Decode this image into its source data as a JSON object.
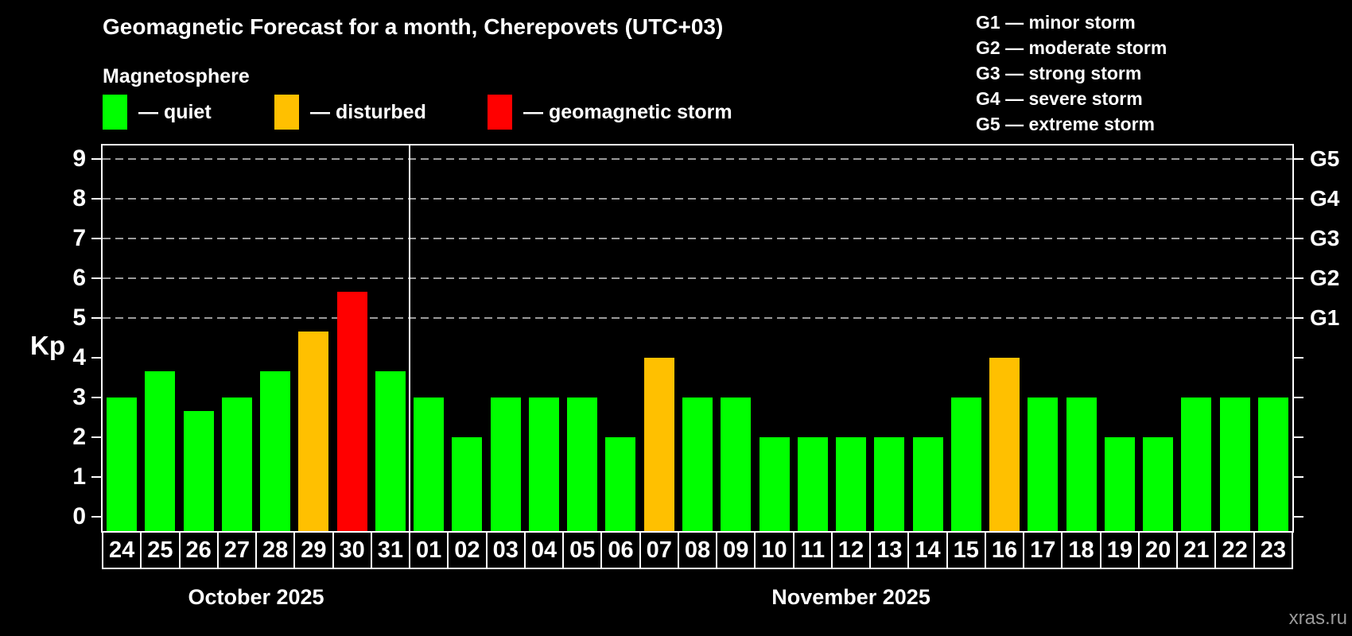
{
  "header": {
    "title": "Geomagnetic Forecast for a month, Cherepovets (UTC+03)",
    "subtitle": "Magnetosphere"
  },
  "legend": {
    "items": [
      {
        "key": "quiet",
        "label": "— quiet"
      },
      {
        "key": "disturbed",
        "label": "— disturbed"
      },
      {
        "key": "storm",
        "label": "— geomagnetic storm"
      }
    ]
  },
  "g_legend": {
    "items": [
      "G1 — minor storm",
      "G2 — moderate storm",
      "G3 — strong storm",
      "G4 — severe storm",
      "G5 — extreme storm"
    ]
  },
  "axes": {
    "y_label": "Kp",
    "y_ticks": [
      0,
      1,
      2,
      3,
      4,
      5,
      6,
      7,
      8,
      9
    ],
    "grid_levels": [
      5,
      6,
      7,
      8,
      9
    ],
    "right_labels": [
      {
        "kp": 5,
        "label": "G1"
      },
      {
        "kp": 6,
        "label": "G2"
      },
      {
        "kp": 7,
        "label": "G3"
      },
      {
        "kp": 8,
        "label": "G4"
      },
      {
        "kp": 9,
        "label": "G5"
      }
    ]
  },
  "colors": {
    "quiet": "#00ff00",
    "disturbed": "#ffc000",
    "storm": "#ff0000",
    "grid": "#9a9a9a",
    "axis": "#ffffff",
    "watermark": "#999999"
  },
  "chart_data": {
    "type": "bar",
    "title": "Geomagnetic Forecast for a month, Cherepovets (UTC+03)",
    "xlabel": "",
    "ylabel": "Kp",
    "ylim": [
      0,
      9
    ],
    "grid": "dashed horizontal at Kp 5-9 (G1-G5)",
    "months": [
      {
        "label": "October 2025",
        "days": [
          {
            "day": "24",
            "kp": 3.0,
            "level": "quiet"
          },
          {
            "day": "25",
            "kp": 3.67,
            "level": "quiet"
          },
          {
            "day": "26",
            "kp": 2.67,
            "level": "quiet"
          },
          {
            "day": "27",
            "kp": 3.0,
            "level": "quiet"
          },
          {
            "day": "28",
            "kp": 3.67,
            "level": "quiet"
          },
          {
            "day": "29",
            "kp": 4.67,
            "level": "disturbed"
          },
          {
            "day": "30",
            "kp": 5.67,
            "level": "storm"
          },
          {
            "day": "31",
            "kp": 3.67,
            "level": "quiet"
          }
        ]
      },
      {
        "label": "November 2025",
        "days": [
          {
            "day": "01",
            "kp": 3,
            "level": "quiet"
          },
          {
            "day": "02",
            "kp": 2,
            "level": "quiet"
          },
          {
            "day": "03",
            "kp": 3,
            "level": "quiet"
          },
          {
            "day": "04",
            "kp": 3,
            "level": "quiet"
          },
          {
            "day": "05",
            "kp": 3,
            "level": "quiet"
          },
          {
            "day": "06",
            "kp": 2,
            "level": "quiet"
          },
          {
            "day": "07",
            "kp": 4,
            "level": "disturbed"
          },
          {
            "day": "08",
            "kp": 3,
            "level": "quiet"
          },
          {
            "day": "09",
            "kp": 3,
            "level": "quiet"
          },
          {
            "day": "10",
            "kp": 2,
            "level": "quiet"
          },
          {
            "day": "11",
            "kp": 2,
            "level": "quiet"
          },
          {
            "day": "12",
            "kp": 2,
            "level": "quiet"
          },
          {
            "day": "13",
            "kp": 2,
            "level": "quiet"
          },
          {
            "day": "14",
            "kp": 2,
            "level": "quiet"
          },
          {
            "day": "15",
            "kp": 3,
            "level": "quiet"
          },
          {
            "day": "16",
            "kp": 4,
            "level": "disturbed"
          },
          {
            "day": "17",
            "kp": 3,
            "level": "quiet"
          },
          {
            "day": "18",
            "kp": 3,
            "level": "quiet"
          },
          {
            "day": "19",
            "kp": 2,
            "level": "quiet"
          },
          {
            "day": "20",
            "kp": 2,
            "level": "quiet"
          },
          {
            "day": "21",
            "kp": 3,
            "level": "quiet"
          },
          {
            "day": "22",
            "kp": 3,
            "level": "quiet"
          },
          {
            "day": "23",
            "kp": 3,
            "level": "quiet"
          }
        ]
      }
    ]
  },
  "watermark": "xras.ru"
}
